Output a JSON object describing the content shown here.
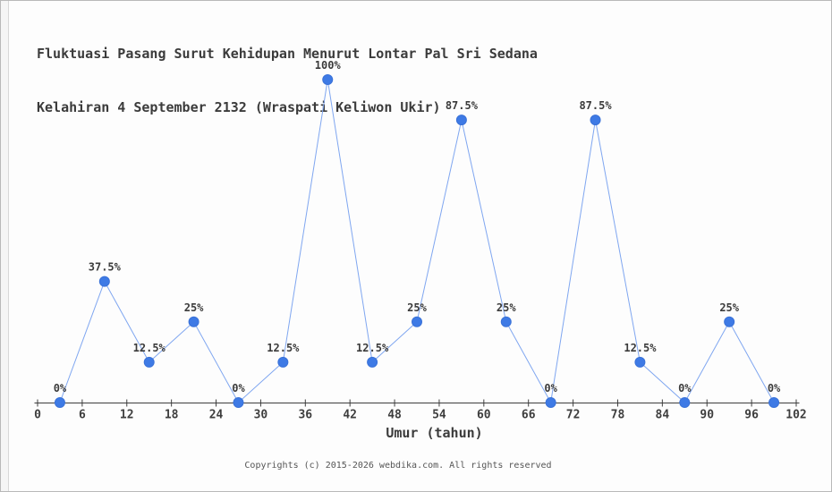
{
  "header": {
    "title_line1": "Fluktuasi Pasang Surut Kehidupan Menurut Lontar Pal Sri Sedana",
    "title_line2": "Kelahiran 4 September 2132 (Wraspati Keliwon Ukir)"
  },
  "chart_data": {
    "type": "line",
    "title": "Fluktuasi Pasang Surut Kehidupan Menurut Lontar Pal Sri Sedana Kelahiran 4 September 2132 (Wraspati Keliwon Ukir)",
    "xlabel": "Umur (tahun)",
    "ylabel": "",
    "x": [
      3,
      9,
      15,
      21,
      27,
      33,
      39,
      45,
      51,
      57,
      63,
      69,
      75,
      81,
      87,
      93,
      99
    ],
    "values": [
      0,
      37.5,
      12.5,
      25,
      0,
      12.5,
      100,
      12.5,
      25,
      87.5,
      25,
      0,
      87.5,
      12.5,
      0,
      25,
      0
    ],
    "point_labels": [
      "0%",
      "37.5%",
      "12.5%",
      "25%",
      "0%",
      "12.5%",
      "100%",
      "12.5%",
      "25%",
      "87.5%",
      "25%",
      "0%",
      "87.5%",
      "12.5%",
      "0%",
      "25%",
      "0%"
    ],
    "x_ticks": [
      0,
      6,
      12,
      18,
      24,
      30,
      36,
      42,
      48,
      54,
      60,
      66,
      72,
      78,
      84,
      90,
      96,
      102
    ],
    "xlim": [
      0,
      102
    ],
    "ylim": [
      0,
      100
    ],
    "grid": false,
    "legend": "none",
    "line_color": "#7fa6f0",
    "marker_color": "#3e7ae5",
    "marker_edge_color": "#3a72d8",
    "axis_color": "#3d3d3d"
  },
  "footer": {
    "copyright": "Copyrights (c) 2015-2026 webdika.com. All rights reserved"
  }
}
